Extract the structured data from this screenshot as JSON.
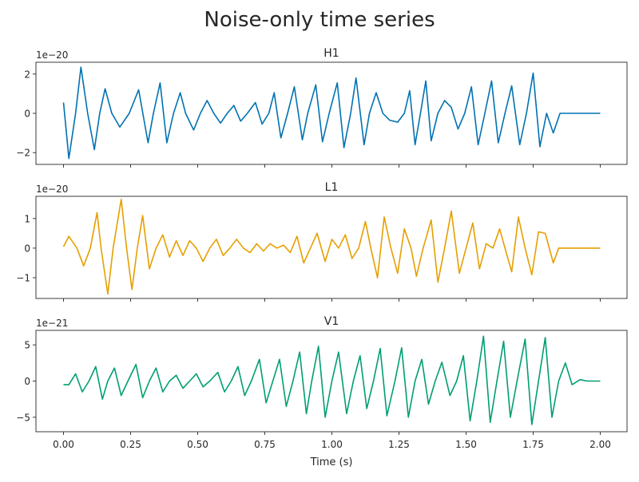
{
  "figure": {
    "title": "Noise-only time series",
    "xlabel": "Time (s)"
  },
  "chart_data": [
    {
      "type": "line",
      "title": "H1",
      "offset_label": "1e−20",
      "color": "#0072b2",
      "xlim": [
        0,
        2
      ],
      "ylim": [
        -2.6,
        2.6
      ],
      "xticks": [
        0.0,
        0.25,
        0.5,
        0.75,
        1.0,
        1.25,
        1.5,
        1.75,
        2.0
      ],
      "xtick_labels": [],
      "yticks": [
        -2,
        0,
        2
      ],
      "ytick_labels": [
        "−2",
        "0",
        "2"
      ],
      "series": [
        {
          "x": [
            0.0,
            0.02,
            0.045,
            0.065,
            0.09,
            0.115,
            0.135,
            0.155,
            0.18,
            0.21,
            0.245,
            0.28,
            0.315,
            0.335,
            0.36,
            0.385,
            0.41,
            0.435,
            0.455,
            0.485,
            0.51,
            0.535,
            0.56,
            0.585,
            0.61,
            0.635,
            0.66,
            0.685,
            0.715,
            0.74,
            0.765,
            0.785,
            0.81,
            0.835,
            0.86,
            0.89,
            0.91,
            0.94,
            0.965,
            0.99,
            1.02,
            1.045,
            1.07,
            1.09,
            1.12,
            1.14,
            1.165,
            1.19,
            1.215,
            1.245,
            1.27,
            1.29,
            1.31,
            1.33,
            1.35,
            1.37,
            1.395,
            1.42,
            1.445,
            1.47,
            1.495,
            1.52,
            1.545,
            1.57,
            1.595,
            1.62,
            1.645,
            1.67,
            1.7,
            1.725,
            1.75,
            1.775,
            1.8,
            1.825,
            1.85,
            1.875,
            1.9,
            1.925,
            1.945,
            1.97,
            2.0
          ],
          "y": [
            0.55,
            -2.3,
            0.0,
            2.35,
            0.0,
            -1.85,
            0.0,
            1.25,
            0.0,
            -0.7,
            0.0,
            1.2,
            -1.5,
            0.0,
            1.55,
            -1.5,
            0.0,
            1.05,
            0.0,
            -0.85,
            0.0,
            0.65,
            0.0,
            -0.5,
            0.0,
            0.4,
            -0.4,
            0.0,
            0.55,
            -0.55,
            0.0,
            1.05,
            -1.25,
            0.0,
            1.35,
            -1.35,
            0.0,
            1.45,
            -1.45,
            0.0,
            1.55,
            -1.75,
            0.0,
            1.8,
            -1.6,
            0.0,
            1.05,
            0.0,
            -0.35,
            -0.45,
            0.0,
            1.15,
            -1.6,
            0.0,
            1.65,
            -1.4,
            0.0,
            0.65,
            0.3,
            -0.8,
            0.0,
            1.35,
            -1.6,
            0.0,
            1.65,
            -1.5,
            0.0,
            1.4,
            -1.6,
            0.0,
            2.05,
            -1.7,
            0.0,
            -1.0,
            0,
            0,
            0,
            0,
            0,
            0,
            0
          ]
        }
      ]
    },
    {
      "type": "line",
      "title": "L1",
      "offset_label": "1e−20",
      "color": "#e69f00",
      "xlim": [
        0,
        2
      ],
      "ylim": [
        -1.7,
        1.75
      ],
      "xticks": [
        0.0,
        0.25,
        0.5,
        0.75,
        1.0,
        1.25,
        1.5,
        1.75,
        2.0
      ],
      "xtick_labels": [],
      "yticks": [
        -1,
        0,
        1
      ],
      "ytick_labels": [
        "−1",
        "0",
        "1"
      ],
      "series": [
        {
          "x": [
            0.0,
            0.02,
            0.05,
            0.075,
            0.1,
            0.125,
            0.14,
            0.165,
            0.185,
            0.215,
            0.235,
            0.255,
            0.275,
            0.295,
            0.32,
            0.345,
            0.37,
            0.395,
            0.42,
            0.445,
            0.47,
            0.495,
            0.52,
            0.545,
            0.57,
            0.595,
            0.62,
            0.645,
            0.67,
            0.695,
            0.72,
            0.745,
            0.77,
            0.795,
            0.82,
            0.845,
            0.87,
            0.895,
            0.92,
            0.945,
            0.975,
            1.0,
            1.025,
            1.05,
            1.075,
            1.1,
            1.125,
            1.145,
            1.17,
            1.195,
            1.22,
            1.245,
            1.27,
            1.295,
            1.315,
            1.34,
            1.37,
            1.395,
            1.42,
            1.445,
            1.475,
            1.5,
            1.525,
            1.55,
            1.575,
            1.6,
            1.625,
            1.645,
            1.67,
            1.695,
            1.72,
            1.745,
            1.77,
            1.795,
            1.825,
            1.845,
            1.875,
            1.9,
            1.93,
            1.955,
            1.98,
            2.0
          ],
          "y": [
            0.05,
            0.4,
            0.0,
            -0.6,
            0.0,
            1.2,
            0.0,
            -1.55,
            0.0,
            1.65,
            0.0,
            -1.4,
            0.0,
            1.1,
            -0.7,
            0.0,
            0.45,
            -0.3,
            0.25,
            -0.25,
            0.25,
            0.0,
            -0.45,
            0.0,
            0.3,
            -0.25,
            0.0,
            0.3,
            0.0,
            -0.15,
            0.15,
            -0.1,
            0.15,
            0.0,
            0.1,
            -0.15,
            0.4,
            -0.5,
            0.0,
            0.5,
            -0.45,
            0.3,
            0.0,
            0.45,
            -0.35,
            0.0,
            0.9,
            0.0,
            -1.0,
            1.05,
            0.0,
            -0.85,
            0.65,
            0.0,
            -0.95,
            0.0,
            0.95,
            -1.15,
            0.0,
            1.25,
            -0.85,
            0.0,
            0.85,
            -0.7,
            0.15,
            0.0,
            0.65,
            0.0,
            -0.8,
            1.05,
            0.0,
            -0.9,
            0.55,
            0.5,
            -0.5,
            0,
            0,
            0,
            0,
            0,
            0,
            0
          ]
        }
      ]
    },
    {
      "type": "line",
      "title": "V1",
      "offset_label": "1e−21",
      "color": "#009e73",
      "xlim": [
        0,
        2
      ],
      "ylim": [
        -7.0,
        7.0
      ],
      "xticks": [
        0.0,
        0.25,
        0.5,
        0.75,
        1.0,
        1.25,
        1.5,
        1.75,
        2.0
      ],
      "xtick_labels": [
        "0.00",
        "0.25",
        "0.50",
        "0.75",
        "1.00",
        "1.25",
        "1.50",
        "1.75",
        "2.00"
      ],
      "yticks": [
        -5,
        0,
        5
      ],
      "ytick_labels": [
        "−5",
        "0",
        "5"
      ],
      "series": [
        {
          "x": [
            0.0,
            0.02,
            0.045,
            0.07,
            0.095,
            0.12,
            0.145,
            0.165,
            0.19,
            0.215,
            0.24,
            0.27,
            0.295,
            0.32,
            0.345,
            0.37,
            0.395,
            0.42,
            0.445,
            0.47,
            0.495,
            0.52,
            0.545,
            0.575,
            0.6,
            0.625,
            0.65,
            0.675,
            0.7,
            0.73,
            0.755,
            0.78,
            0.805,
            0.83,
            0.855,
            0.88,
            0.905,
            0.925,
            0.95,
            0.975,
            1.0,
            1.025,
            1.055,
            1.08,
            1.105,
            1.13,
            1.155,
            1.18,
            1.205,
            1.235,
            1.26,
            1.285,
            1.31,
            1.335,
            1.36,
            1.385,
            1.41,
            1.44,
            1.465,
            1.49,
            1.515,
            1.54,
            1.565,
            1.59,
            1.615,
            1.64,
            1.665,
            1.69,
            1.72,
            1.745,
            1.77,
            1.795,
            1.82,
            1.845,
            1.87,
            1.895,
            1.925,
            1.95,
            1.975,
            2.0
          ],
          "y": [
            -0.5,
            -0.5,
            1.0,
            -1.5,
            0.0,
            2.0,
            -2.5,
            0.0,
            1.8,
            -2.0,
            0.0,
            2.3,
            -2.3,
            0.0,
            1.8,
            -1.5,
            0.0,
            0.8,
            -1.0,
            0.0,
            1.0,
            -0.8,
            0.0,
            1.2,
            -1.5,
            0.0,
            2.0,
            -2.0,
            0.0,
            3.0,
            -3.0,
            0.0,
            3.0,
            -3.5,
            0.0,
            4.0,
            -4.5,
            0.0,
            4.8,
            -5.0,
            0.0,
            4.0,
            -4.5,
            0.0,
            3.5,
            -3.8,
            0.0,
            4.5,
            -4.8,
            0.0,
            4.6,
            -5.0,
            0.0,
            3.0,
            -3.2,
            0.0,
            2.6,
            -2.0,
            0.0,
            3.5,
            -5.5,
            0.0,
            6.2,
            -5.7,
            0.0,
            5.5,
            -5.0,
            0.0,
            5.8,
            -6.0,
            0.0,
            6.0,
            -5.0,
            0.0,
            2.5,
            -0.5,
            0.2,
            0,
            0,
            0
          ]
        }
      ]
    }
  ]
}
